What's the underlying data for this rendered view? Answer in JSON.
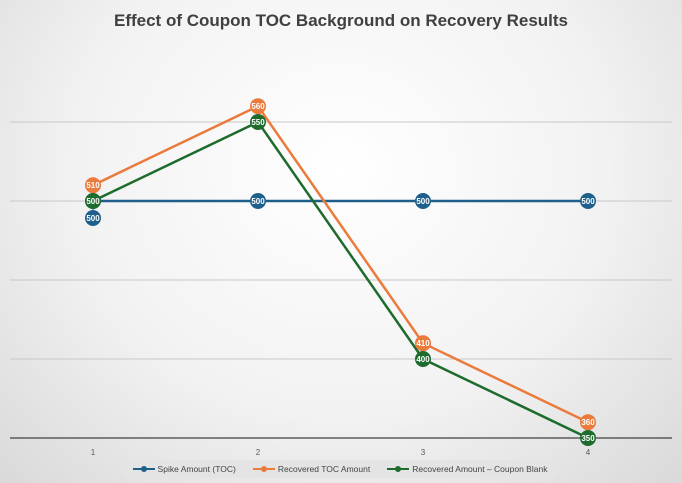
{
  "chart_data": {
    "type": "line",
    "title": "Effect of Coupon TOC Background on Recovery Results",
    "xlabel": "",
    "ylabel": "",
    "categories": [
      "1",
      "2",
      "3",
      "4"
    ],
    "ylim": [
      350,
      600
    ],
    "gridlines": [
      400,
      450,
      500,
      550
    ],
    "grid": true,
    "legend_position": "bottom",
    "series": [
      {
        "name": "Spike Amount (TOC)",
        "color": "#1f5f8b",
        "values": [
          500,
          500,
          500,
          500
        ]
      },
      {
        "name": "Recovered TOC Amount",
        "color": "#ea7b3c",
        "values": [
          510,
          560,
          410,
          360
        ]
      },
      {
        "name": "Recovered Amount – Coupon Blank",
        "color": "#1e6b2e",
        "values": [
          500,
          550,
          400,
          350
        ]
      }
    ]
  }
}
